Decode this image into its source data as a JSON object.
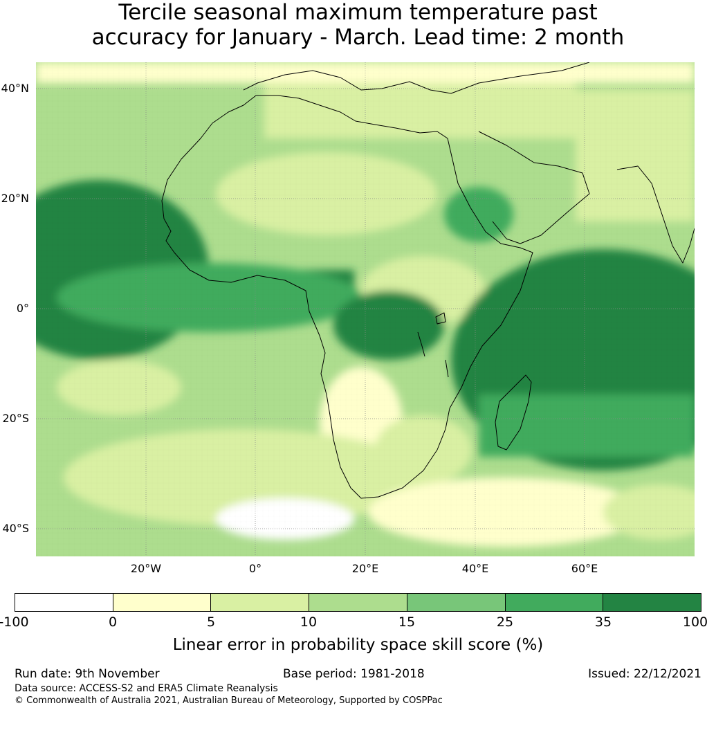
{
  "title": {
    "line1": "Tercile seasonal maximum temperature past",
    "line2": "accuracy for January - March. Lead time: 2 month"
  },
  "map": {
    "lat_labels": [
      "40°N",
      "20°N",
      "0°",
      "20°S",
      "40°S"
    ],
    "lon_labels": [
      "20°W",
      "0°",
      "20°E",
      "40°E",
      "60°E"
    ],
    "extent": {
      "lon": [
        -40,
        80
      ],
      "lat": [
        -45,
        45
      ]
    },
    "graticule": "dotted grey"
  },
  "colorbar": {
    "ticks": [
      "-100",
      "0",
      "5",
      "10",
      "15",
      "25",
      "35",
      "100"
    ],
    "colors": [
      "#ffffff",
      "#ffffcc",
      "#d9f0a3",
      "#addd8e",
      "#78c679",
      "#41ab5d",
      "#238443"
    ],
    "label": "Linear error in probability space skill score (%)"
  },
  "footer": {
    "run_date": "Run date: 9th November",
    "base_period": "Base period: 1981-2018",
    "issued": "Issued: 22/12/2021",
    "data_source": "Data source: ACCESS-S2 and ERA5 Climate Reanalysis",
    "copyright": "© Commonwealth of Australia 2021, Australian Bureau of Meteorology, Supported by COSPPac"
  }
}
